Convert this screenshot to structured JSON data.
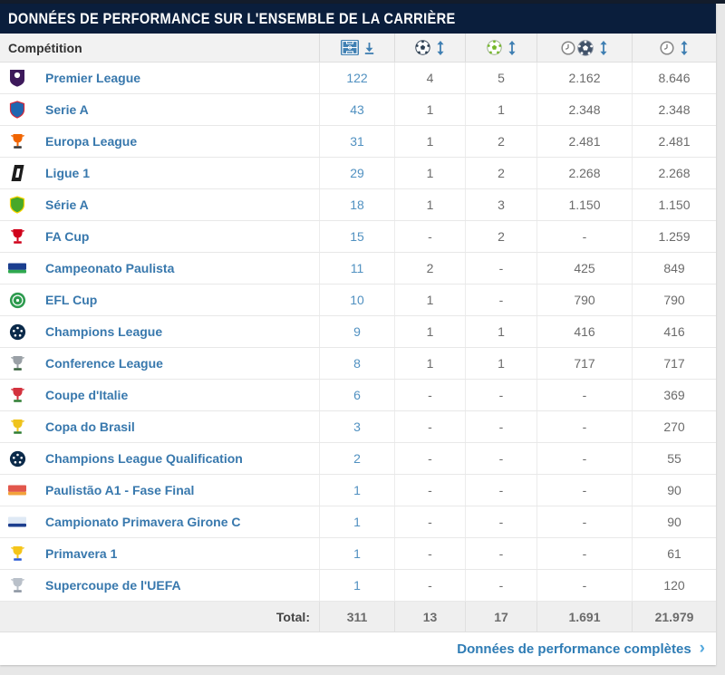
{
  "card": {
    "title": "DONNÉES DE PERFORMANCE SUR L'ENSEMBLE DE LA CARRIÈRE"
  },
  "colors": {
    "header_bg": "#0a1e3c",
    "link_blue": "#3878ad",
    "value_blue": "#5191c1",
    "value_gray": "#6b6b6b",
    "accent_sort": "#3f7fb2"
  },
  "table": {
    "competition_header": "Compétition",
    "column_headers": [
      {
        "id": "matches",
        "icons": [
          "football-pitch-icon",
          "download-icon"
        ]
      },
      {
        "id": "goals",
        "icons": [
          "football-icon",
          "sort-arrows-icon"
        ]
      },
      {
        "id": "assists",
        "icons": [
          "football-green-icon",
          "sort-arrows-icon"
        ]
      },
      {
        "id": "minutes-per-goal",
        "icons": [
          "clock-icon",
          "football-dark-icon",
          "sort-arrows-icon"
        ]
      },
      {
        "id": "minutes-played",
        "icons": [
          "clock-icon",
          "sort-arrows-icon"
        ]
      }
    ],
    "rows": [
      {
        "competition": "Premier League",
        "matches": "122",
        "goals": "4",
        "assists": "5",
        "minutes_per_goal": "2.162",
        "minutes_played": "8.646",
        "logo": {
          "shape": "crest",
          "colors": [
            "#3d195b",
            "#ffffff"
          ]
        }
      },
      {
        "competition": "Serie A",
        "matches": "43",
        "goals": "1",
        "assists": "1",
        "minutes_per_goal": "2.348",
        "minutes_played": "2.348",
        "logo": {
          "shape": "shield",
          "colors": [
            "#1f66b0",
            "#d62839"
          ]
        }
      },
      {
        "competition": "Europa League",
        "matches": "31",
        "goals": "1",
        "assists": "2",
        "minutes_per_goal": "2.481",
        "minutes_played": "2.481",
        "logo": {
          "shape": "trophy",
          "colors": [
            "#f06400",
            "#333333"
          ]
        }
      },
      {
        "competition": "Ligue 1",
        "matches": "29",
        "goals": "1",
        "assists": "2",
        "minutes_per_goal": "2.268",
        "minutes_played": "2.268",
        "logo": {
          "shape": "hex",
          "colors": [
            "#1c1c1c",
            "#ffffff"
          ]
        }
      },
      {
        "competition": "Série A",
        "matches": "18",
        "goals": "1",
        "assists": "3",
        "minutes_per_goal": "1.150",
        "minutes_played": "1.150",
        "logo": {
          "shape": "shield",
          "colors": [
            "#47a829",
            "#ffd500"
          ]
        }
      },
      {
        "competition": "FA Cup",
        "matches": "15",
        "goals": "-",
        "assists": "2",
        "minutes_per_goal": "-",
        "minutes_played": "1.259",
        "logo": {
          "shape": "trophy",
          "colors": [
            "#d0021b",
            "#d0021b"
          ]
        }
      },
      {
        "competition": "Campeonato Paulista",
        "matches": "11",
        "goals": "2",
        "assists": "-",
        "minutes_per_goal": "425",
        "minutes_played": "849",
        "logo": {
          "shape": "banner",
          "colors": [
            "#1b3e8f",
            "#2fa84f"
          ]
        }
      },
      {
        "competition": "EFL Cup",
        "matches": "10",
        "goals": "1",
        "assists": "-",
        "minutes_per_goal": "790",
        "minutes_played": "790",
        "logo": {
          "shape": "circle",
          "colors": [
            "#2e9b4f",
            "#ffffff"
          ]
        }
      },
      {
        "competition": "Champions League",
        "matches": "9",
        "goals": "1",
        "assists": "1",
        "minutes_per_goal": "416",
        "minutes_played": "416",
        "logo": {
          "shape": "starball",
          "colors": [
            "#0b2a4a",
            "#ffffff"
          ]
        }
      },
      {
        "competition": "Conference League",
        "matches": "8",
        "goals": "1",
        "assists": "1",
        "minutes_per_goal": "717",
        "minutes_played": "717",
        "logo": {
          "shape": "trophy",
          "colors": [
            "#9aa0a6",
            "#355e3b"
          ]
        }
      },
      {
        "competition": "Coupe d'Italie",
        "matches": "6",
        "goals": "-",
        "assists": "-",
        "minutes_per_goal": "-",
        "minutes_played": "369",
        "logo": {
          "shape": "trophy",
          "colors": [
            "#d3323e",
            "#2e7d32"
          ]
        }
      },
      {
        "competition": "Copa do Brasil",
        "matches": "3",
        "goals": "-",
        "assists": "-",
        "minutes_per_goal": "-",
        "minutes_played": "270",
        "logo": {
          "shape": "trophy",
          "colors": [
            "#efc31b",
            "#2e7d32"
          ]
        }
      },
      {
        "competition": "Champions League Qualification",
        "matches": "2",
        "goals": "-",
        "assists": "-",
        "minutes_per_goal": "-",
        "minutes_played": "55",
        "logo": {
          "shape": "starball",
          "colors": [
            "#0b2a4a",
            "#ffffff"
          ]
        }
      },
      {
        "competition": "Paulistão A1 - Fase Final",
        "matches": "1",
        "goals": "-",
        "assists": "-",
        "minutes_per_goal": "-",
        "minutes_played": "90",
        "logo": {
          "shape": "banner",
          "colors": [
            "#e2574c",
            "#f2a33c"
          ]
        }
      },
      {
        "competition": "Campionato Primavera Girone C",
        "matches": "1",
        "goals": "-",
        "assists": "-",
        "minutes_per_goal": "-",
        "minutes_played": "90",
        "logo": {
          "shape": "banner",
          "colors": [
            "#dfe9f5",
            "#1d3f8f"
          ]
        }
      },
      {
        "competition": "Primavera 1",
        "matches": "1",
        "goals": "-",
        "assists": "-",
        "minutes_per_goal": "-",
        "minutes_played": "61",
        "logo": {
          "shape": "trophy",
          "colors": [
            "#f5c51a",
            "#2a5bd7"
          ]
        }
      },
      {
        "competition": "Supercoupe de l'UEFA",
        "matches": "1",
        "goals": "-",
        "assists": "-",
        "minutes_per_goal": "-",
        "minutes_played": "120",
        "logo": {
          "shape": "trophy",
          "colors": [
            "#b9c0c9",
            "#8a93a0"
          ]
        }
      }
    ],
    "total": {
      "label": "Total:",
      "matches": "311",
      "goals": "13",
      "assists": "17",
      "minutes_per_goal": "1.691",
      "minutes_played": "21.979"
    }
  },
  "footer": {
    "link_label": "Données de performance complètes",
    "chevron": "›"
  }
}
